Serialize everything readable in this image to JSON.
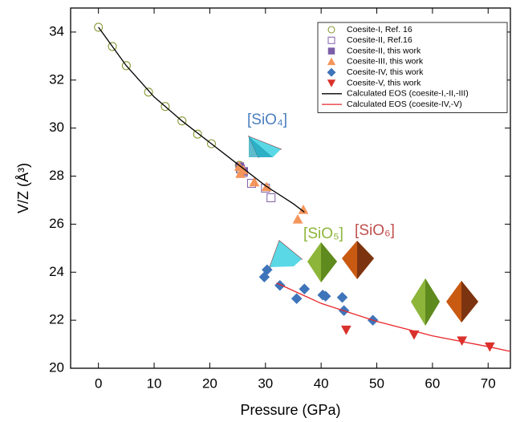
{
  "chart_data": {
    "type": "scatter",
    "xlabel": "Pressure (GPa)",
    "ylabel": "V/Z (Å³)",
    "xlim": [
      -5,
      74
    ],
    "ylim": [
      20,
      35
    ],
    "xticks": [
      0,
      10,
      20,
      30,
      40,
      50,
      60,
      70
    ],
    "yticks": [
      20,
      22,
      24,
      26,
      28,
      30,
      32,
      34
    ],
    "legend": "upper right",
    "annotations": [
      {
        "text": "[SiO₄]",
        "color": "#4a7fc1"
      },
      {
        "text": "[SiO₅]",
        "color": "#8db53a"
      },
      {
        "text": "[SiO₆]",
        "color": "#c0504d"
      }
    ],
    "series": [
      {
        "name": "Coesite-I, Ref. 16",
        "marker": "circle",
        "filled": false,
        "color": "#8b9a3a",
        "x": [
          0,
          2.5,
          5,
          9,
          12,
          15,
          17.8,
          20.3,
          25.3,
          25.6
        ],
        "y": [
          34.2,
          33.4,
          32.6,
          31.5,
          30.9,
          30.3,
          29.75,
          29.35,
          28.45,
          28.25
        ]
      },
      {
        "name": "Coesite-II, Ref.16",
        "marker": "square",
        "filled": false,
        "color": "#8a6bb0",
        "x": [
          25.5,
          26,
          27.5,
          30,
          31
        ],
        "y": [
          28.3,
          28.15,
          27.7,
          27.5,
          27.1
        ]
      },
      {
        "name": "Coesite-II, this work",
        "marker": "square",
        "filled": true,
        "color": "#7b5ea7",
        "x": [
          25.4,
          26.1
        ],
        "y": [
          28.4,
          28.2
        ]
      },
      {
        "name": "Coesite-III, this work",
        "marker": "triangle-up",
        "filled": true,
        "color": "#f4955b",
        "x": [
          25.3,
          25.5,
          26,
          28,
          30.2,
          35.8,
          36.8
        ],
        "y": [
          28.4,
          28.1,
          28.25,
          27.75,
          27.55,
          26.2,
          26.6
        ]
      },
      {
        "name": "Coesite-IV, this work",
        "marker": "diamond",
        "filled": true,
        "color": "#3e74b9",
        "x": [
          29.8,
          30.3,
          32.6,
          35.6,
          37,
          40.3,
          40.8,
          43.8,
          44.1,
          49.3
        ],
        "y": [
          23.8,
          24.1,
          23.45,
          22.9,
          23.3,
          23.05,
          23.0,
          22.95,
          22.4,
          22.0
        ]
      },
      {
        "name": "Coesite-V, this work",
        "marker": "triangle-down",
        "filled": true,
        "color": "#d9312b",
        "x": [
          44.5,
          56.7,
          65.3,
          70.3
        ],
        "y": [
          21.6,
          21.4,
          21.15,
          20.9
        ]
      },
      {
        "name": "Calculated EOS (coesite-I,-II,-III)",
        "marker": "line",
        "color": "#000000",
        "x": [
          0,
          5,
          10,
          15,
          20,
          25,
          30,
          35,
          37
        ],
        "y": [
          34.2,
          32.6,
          31.3,
          30.3,
          29.4,
          28.5,
          27.6,
          26.85,
          26.5
        ]
      },
      {
        "name": "Calculated EOS (coesite-IV,-V)",
        "marker": "line",
        "color": "#e8282b",
        "x": [
          32,
          40,
          50,
          60,
          70,
          74
        ],
        "y": [
          23.55,
          22.7,
          21.95,
          21.35,
          20.9,
          20.7
        ]
      }
    ]
  }
}
